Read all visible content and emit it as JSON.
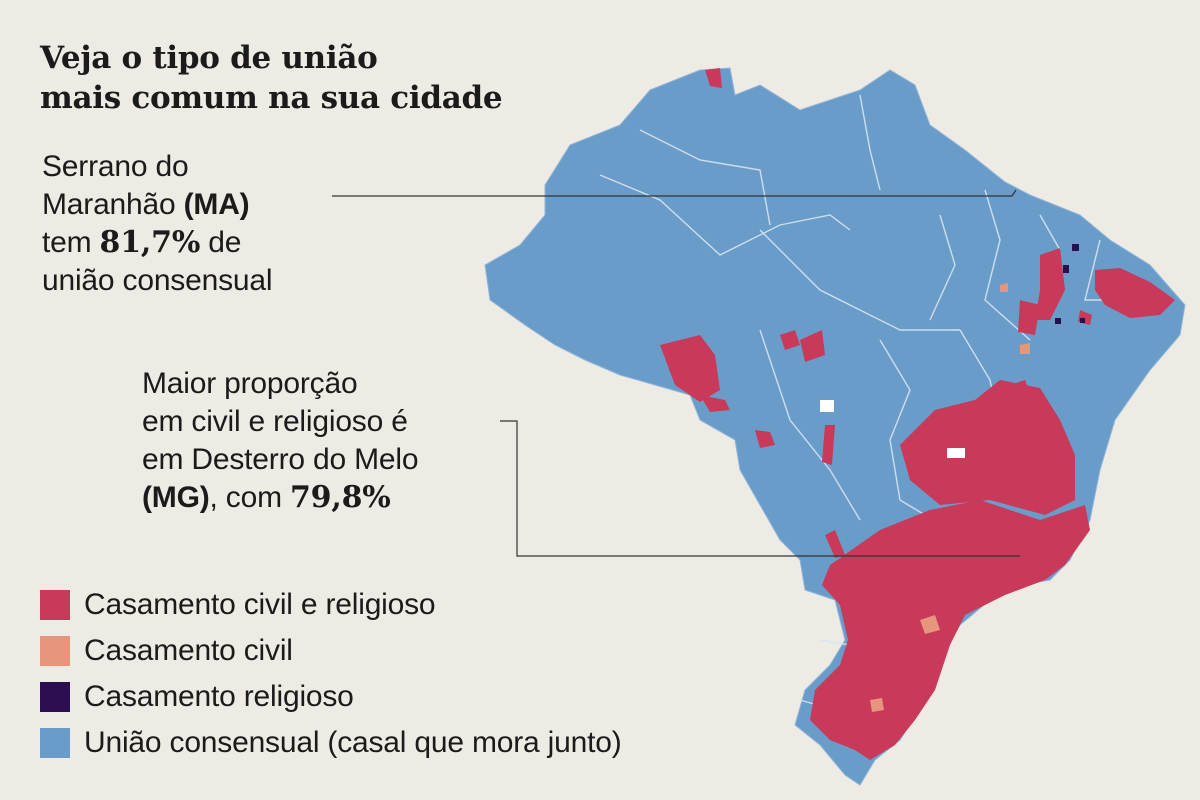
{
  "title": {
    "line1": "Veja o tipo de união",
    "line2": "mais comum na sua cidade"
  },
  "callout_ma": {
    "line1": "Serrano do",
    "line2_text": "Maranhão ",
    "line2_bold": "(MA)",
    "line3_prefix": "tem ",
    "line3_value": "81,7%",
    "line3_suffix": " de",
    "line4": "união consensual"
  },
  "callout_mg": {
    "line1": "Maior proporção",
    "line2": "em civil e religioso é",
    "line3": "em Desterro do Melo",
    "line4_bold": "(MG)",
    "line4_text": ", com ",
    "line4_value": "79,8%"
  },
  "legend": [
    {
      "label": "Casamento civil e religioso",
      "color": "#c8395a"
    },
    {
      "label": "Casamento civil",
      "color": "#e8957d"
    },
    {
      "label": "Casamento religioso",
      "color": "#2a0e4f"
    },
    {
      "label": "União consensual (casal que mora junto)",
      "color": "#6a9cc9"
    }
  ],
  "colors": {
    "background": "#eeebe4",
    "uniao_consensual": "#6a9cc9",
    "civil_religioso": "#c8395a",
    "civil": "#e8957d",
    "religioso": "#2a0e4f"
  }
}
